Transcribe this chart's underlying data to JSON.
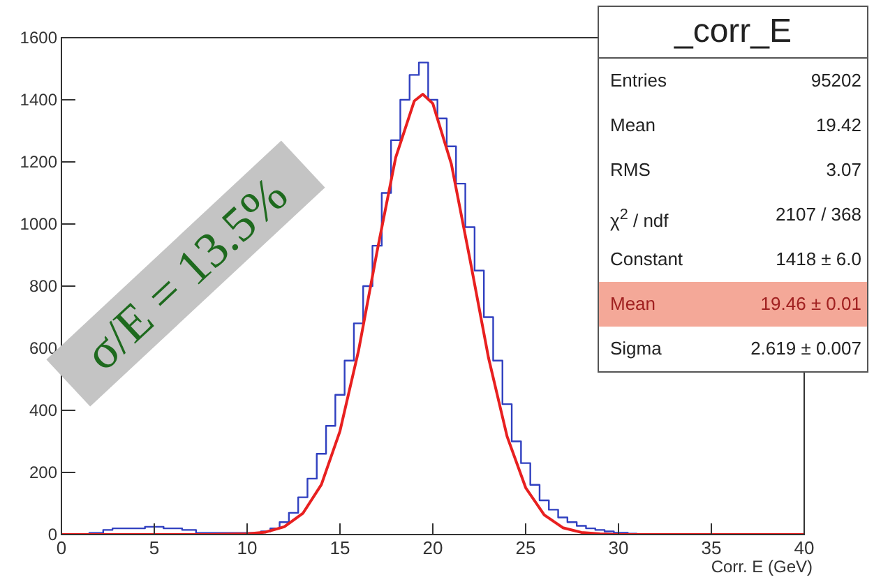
{
  "chart_data": {
    "type": "step",
    "xlabel": "Corr. E (GeV)",
    "xlim": [
      0,
      40
    ],
    "xticks": [
      0,
      5,
      10,
      15,
      20,
      25,
      30,
      35,
      40
    ],
    "ylim": [
      0,
      1600
    ],
    "yticks": [
      0,
      200,
      400,
      600,
      800,
      1000,
      1200,
      1400,
      1600
    ],
    "marker": "none",
    "series": [
      {
        "color": "#3040c0",
        "x": [
          0,
          1,
          2,
          2.5,
          3,
          4,
          5,
          6,
          7,
          7.5,
          8,
          9,
          10,
          10.5,
          11,
          11.5,
          12,
          12.5,
          13,
          13.5,
          14,
          14.5,
          15,
          15.5,
          16,
          16.5,
          17,
          17.5,
          18,
          18.5,
          19,
          19.5,
          20,
          20.5,
          21,
          21.5,
          22,
          22.5,
          23,
          23.5,
          24,
          24.5,
          25,
          25.5,
          26,
          26.5,
          27,
          27.5,
          28,
          28.5,
          29,
          29.5,
          30,
          31
        ],
        "values": [
          0,
          0,
          5,
          15,
          20,
          20,
          25,
          20,
          15,
          5,
          5,
          5,
          5,
          5,
          10,
          20,
          40,
          70,
          120,
          180,
          260,
          350,
          450,
          560,
          680,
          800,
          930,
          1100,
          1270,
          1400,
          1480,
          1520,
          1400,
          1340,
          1250,
          1130,
          990,
          850,
          700,
          560,
          420,
          300,
          230,
          160,
          110,
          80,
          55,
          40,
          28,
          20,
          15,
          10,
          6,
          3
        ]
      },
      {
        "type": "line",
        "color": "#e82020",
        "x": [
          0,
          8,
          10,
          11,
          12,
          13,
          14,
          15,
          16,
          17,
          18,
          19,
          19.46,
          20,
          21,
          22,
          23,
          24,
          25,
          26,
          27,
          28,
          29,
          30,
          40
        ],
        "values": [
          0,
          0,
          2,
          8,
          25,
          68,
          161,
          333,
          592,
          912,
          1214,
          1396,
          1418,
          1388,
          1193,
          886,
          569,
          316,
          151,
          63,
          22,
          7,
          2,
          0,
          0
        ]
      }
    ],
    "annotations": [
      "σ/E = 13.5%",
      "_corr_E",
      "Entries",
      "95202",
      "Mean",
      "19.42",
      "RMS",
      "3.07",
      "χ$^{2}$ / ndf",
      "2107 / 368",
      "Constant",
      "1418 ± 6.0",
      "Mean",
      "19.46 ± 0.01",
      "Sigma",
      "2.619 ± 0.007"
    ]
  }
}
